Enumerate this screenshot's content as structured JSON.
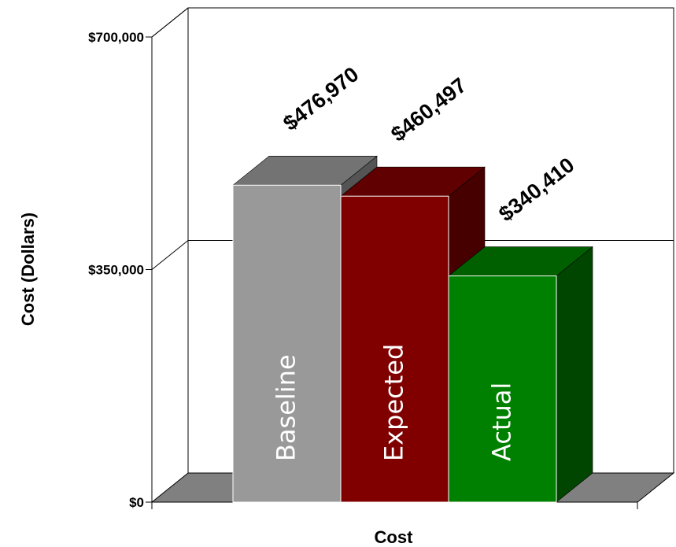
{
  "chart_data": {
    "type": "bar",
    "style": "3d-clustered",
    "categories": [
      "Cost"
    ],
    "series": [
      {
        "name": "Baseline",
        "values": [
          476970
        ],
        "value_label": "$476,970",
        "color": "#999999"
      },
      {
        "name": "Expected",
        "values": [
          460497
        ],
        "value_label": "$460,497",
        "color": "#800000"
      },
      {
        "name": "Actual",
        "values": [
          340410
        ],
        "value_label": "$340,410",
        "color": "#008000"
      }
    ],
    "xlabel": "Cost",
    "ylabel": "Cost (Dollars)",
    "ylim": [
      0,
      700000
    ],
    "yticks": [
      0,
      350000,
      700000
    ],
    "ytick_labels": [
      "$0",
      "$350,000",
      "$700,000"
    ],
    "grid": true,
    "legend": "none",
    "series_labels_inside_bars": true
  }
}
